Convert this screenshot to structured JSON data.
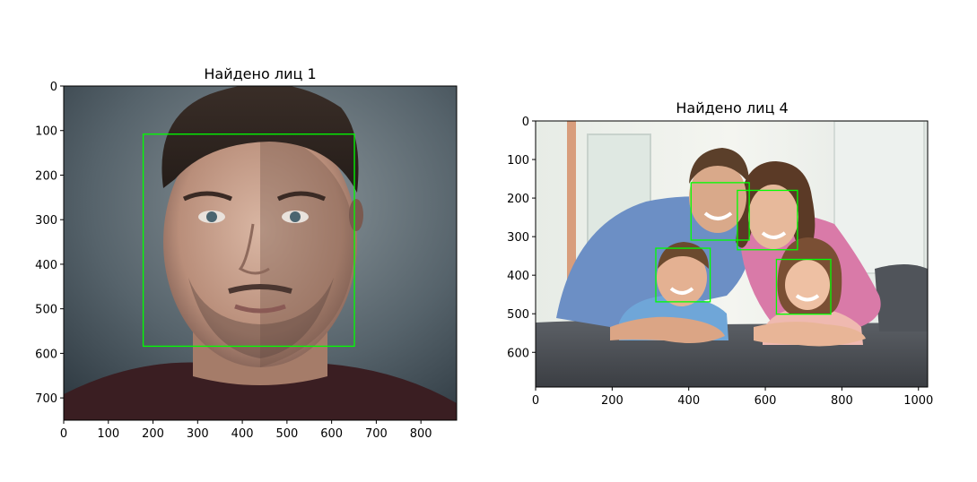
{
  "chart_data": [
    {
      "type": "image",
      "title": "Найдено лиц 1",
      "image_desc": "portrait-of-man",
      "xlim": [
        0,
        880
      ],
      "ylim": [
        750,
        0
      ],
      "xticks": [
        0,
        100,
        200,
        300,
        400,
        500,
        600,
        700,
        800
      ],
      "yticks": [
        0,
        100,
        200,
        300,
        400,
        500,
        600,
        700
      ],
      "box_color": "#00ff00",
      "boxes": [
        {
          "x0": 178,
          "y0": 108,
          "x1": 651,
          "y1": 584
        }
      ]
    },
    {
      "type": "image",
      "title": "Найдено лиц 4",
      "image_desc": "family-photo",
      "xlim": [
        0,
        1024
      ],
      "ylim": [
        690,
        0
      ],
      "xticks": [
        0,
        200,
        400,
        600,
        800,
        1000
      ],
      "yticks": [
        0,
        100,
        200,
        300,
        400,
        500,
        600
      ],
      "box_color": "#00ff00",
      "boxes": [
        {
          "x0": 406,
          "y0": 160,
          "x1": 558,
          "y1": 309
        },
        {
          "x0": 527,
          "y0": 180,
          "x1": 684,
          "y1": 334
        },
        {
          "x0": 314,
          "y0": 330,
          "x1": 456,
          "y1": 469
        },
        {
          "x0": 629,
          "y0": 359,
          "x1": 771,
          "y1": 501
        }
      ]
    }
  ]
}
